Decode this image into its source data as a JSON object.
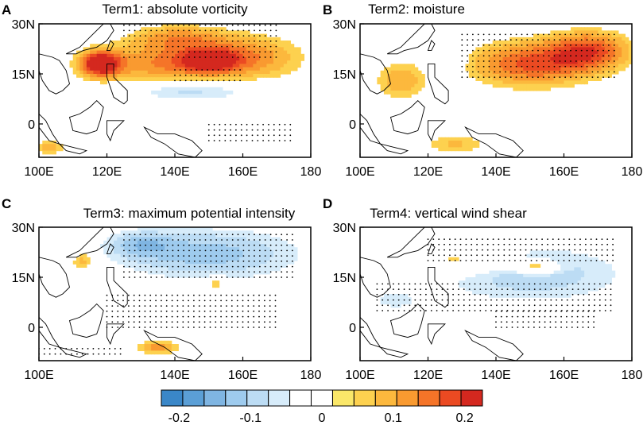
{
  "figure": {
    "colorbar": {
      "colors": [
        "#3a87c8",
        "#5b9fd6",
        "#7fb5e2",
        "#9ecbee",
        "#bcdcf4",
        "#d7ecfa",
        "#ffffff",
        "#ffffff",
        "#fae769",
        "#fdd14f",
        "#fcb83d",
        "#f99a30",
        "#f57428",
        "#eb4a22",
        "#d4281f"
      ],
      "tick_labels": [
        "-0.2",
        "-0.1",
        "0",
        "0.1",
        "0.2"
      ],
      "range": [
        -0.225,
        0.225
      ],
      "tick_values": [
        -0.2,
        -0.1,
        0,
        0.1,
        0.2
      ]
    }
  },
  "chart_data": [
    {
      "type": "heatmap",
      "panel_letter": "A",
      "title": "Term1: absolute vorticity",
      "x_tick_labels": [
        "100E",
        "120E",
        "140E",
        "160E",
        "180"
      ],
      "y_tick_labels": [
        "30N",
        "15N",
        "0"
      ],
      "x_range": [
        100,
        180
      ],
      "y_range": [
        -10,
        30
      ],
      "blobs": [
        {
          "lon": 135,
          "lat": 18,
          "rlon": 20,
          "rlat": 6,
          "v": 0.12
        },
        {
          "lon": 160,
          "lat": 20,
          "rlon": 18,
          "rlat": 7,
          "v": 0.13
        },
        {
          "lon": 118,
          "lat": 18,
          "rlon": 6,
          "rlat": 4,
          "v": 0.22
        },
        {
          "lon": 150,
          "lat": 19,
          "rlon": 7,
          "rlat": 3,
          "v": 0.17
        },
        {
          "lon": 140,
          "lat": 26,
          "rlon": 14,
          "rlat": 4,
          "v": 0.1
        },
        {
          "lon": 145,
          "lat": 10,
          "rlon": 20,
          "rlat": 3,
          "v": -0.1
        },
        {
          "lon": 103,
          "lat": -7,
          "rlon": 5,
          "rlat": 2,
          "v": 0.1
        }
      ],
      "stipple": [
        [
          125,
          170,
          20,
          30
        ],
        [
          140,
          160,
          13,
          17
        ],
        [
          150,
          175,
          -5,
          0
        ]
      ]
    },
    {
      "type": "heatmap",
      "panel_letter": "B",
      "title": "Term2: moisture",
      "x_tick_labels": [
        "100E",
        "120E",
        "140E",
        "160E",
        "180"
      ],
      "y_tick_labels": [
        "30N",
        "15N",
        "0"
      ],
      "x_range": [
        100,
        180
      ],
      "y_range": [
        -10,
        30
      ],
      "blobs": [
        {
          "lon": 150,
          "lat": 18,
          "rlon": 18,
          "rlat": 7,
          "v": 0.17
        },
        {
          "lon": 168,
          "lat": 22,
          "rlon": 12,
          "rlat": 6,
          "v": 0.16
        },
        {
          "lon": 112,
          "lat": 13,
          "rlon": 8,
          "rlat": 6,
          "v": 0.1
        },
        {
          "lon": 125,
          "lat": 20,
          "rlon": 5,
          "rlat": 4,
          "v": -0.07
        },
        {
          "lon": 128,
          "lat": -6,
          "rlon": 10,
          "rlat": 3,
          "v": 0.08
        }
      ],
      "stipple": [
        [
          130,
          175,
          14,
          27
        ]
      ]
    },
    {
      "type": "heatmap",
      "panel_letter": "C",
      "title": "Term3: maximum potential intensity",
      "x_tick_labels": [
        "100E",
        "140E",
        "160E",
        "180"
      ],
      "y_tick_labels": [
        "30N",
        "15N",
        "0"
      ],
      "x_range": [
        100,
        180
      ],
      "y_range": [
        -10,
        30
      ],
      "blobs": [
        {
          "lon": 150,
          "lat": 22,
          "rlon": 28,
          "rlat": 8,
          "v": -0.12
        },
        {
          "lon": 130,
          "lat": 25,
          "rlon": 10,
          "rlat": 4,
          "v": -0.08
        },
        {
          "lon": 113,
          "lat": 20,
          "rlon": 4,
          "rlat": 3,
          "v": 0.1
        },
        {
          "lon": 135,
          "lat": -6,
          "rlon": 6,
          "rlat": 2,
          "v": 0.13
        },
        {
          "lon": 152,
          "lat": 13,
          "rlon": 3,
          "rlat": 2,
          "v": 0.1
        }
      ],
      "stipple": [
        [
          125,
          175,
          15,
          28
        ],
        [
          120,
          170,
          0,
          10
        ],
        [
          100,
          125,
          -8,
          -5
        ]
      ]
    },
    {
      "type": "heatmap",
      "panel_letter": "D",
      "title": "Term4: vertical wind shear",
      "x_tick_labels": [
        "100E",
        "120E",
        "140E",
        "160E",
        "180"
      ],
      "y_tick_labels": [
        "30N",
        "15N",
        "0"
      ],
      "x_range": [
        100,
        180
      ],
      "y_range": [
        -10,
        30
      ],
      "blobs": [
        {
          "lon": 150,
          "lat": 16,
          "rlon": 30,
          "rlat": 9,
          "v": -0.1
        },
        {
          "lon": 130,
          "lat": 20,
          "rlon": 14,
          "rlat": 4,
          "v": 0.1
        },
        {
          "lon": 152,
          "lat": 18,
          "rlon": 6,
          "rlat": 2,
          "v": 0.15
        },
        {
          "lon": 110,
          "lat": 8,
          "rlon": 8,
          "rlat": 3,
          "v": -0.06
        }
      ],
      "stipple": [
        [
          120,
          175,
          20,
          28
        ],
        [
          105,
          175,
          5,
          13
        ],
        [
          140,
          170,
          0,
          5
        ]
      ]
    }
  ]
}
